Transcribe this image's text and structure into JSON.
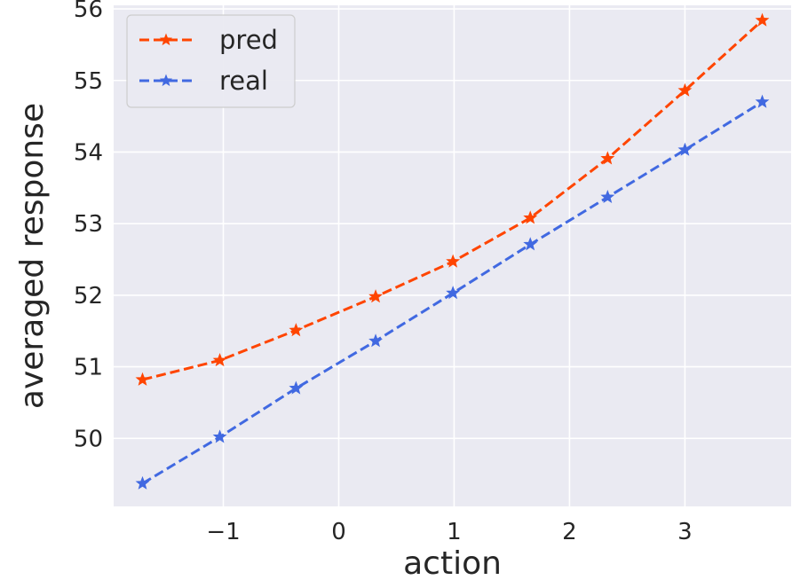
{
  "chart_data": {
    "type": "line",
    "xlabel": "action",
    "ylabel": "averaged response",
    "xlim": [
      -1.95,
      3.92
    ],
    "ylim": [
      49.05,
      56.05
    ],
    "xticks": [
      -1,
      0,
      1,
      2,
      3
    ],
    "xtick_labels": [
      "−1",
      "0",
      "1",
      "2",
      "3"
    ],
    "yticks": [
      50,
      51,
      52,
      53,
      54,
      55,
      56
    ],
    "ytick_labels": [
      "50",
      "51",
      "52",
      "53",
      "54",
      "55",
      "56"
    ],
    "grid": true,
    "legend_position": "top-left",
    "x": [
      -1.7,
      -1.03,
      -0.37,
      0.32,
      0.99,
      1.66,
      2.33,
      3.0,
      3.67
    ],
    "series": [
      {
        "name": "pred",
        "color": "#ff4500",
        "line_style": "dashed",
        "marker": "star",
        "values": [
          50.82,
          51.09,
          51.51,
          51.98,
          52.47,
          53.08,
          53.91,
          54.86,
          55.84
        ]
      },
      {
        "name": "real",
        "color": "#4169e1",
        "line_style": "dashed",
        "marker": "star",
        "values": [
          49.37,
          50.02,
          50.7,
          51.36,
          52.03,
          52.71,
          53.37,
          54.03,
          54.7
        ]
      }
    ],
    "plot_background": "#eaeaf2",
    "grid_color": "#ffffff"
  }
}
